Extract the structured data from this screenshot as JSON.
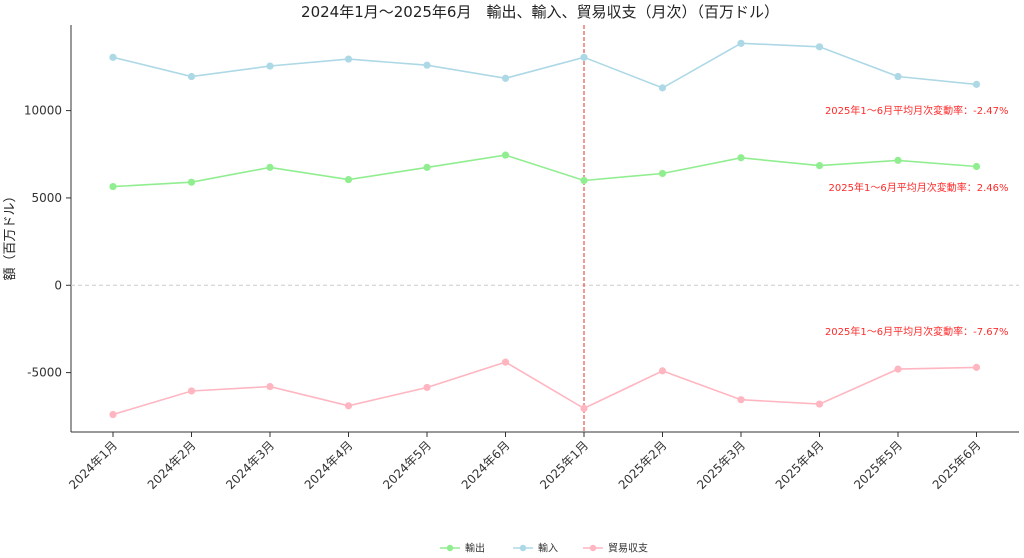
{
  "chart_data": {
    "type": "line",
    "title": "2024年1月～2025年6月　輸出、輸入、貿易収支（月次）（百万ドル）",
    "xlabel": "",
    "ylabel": "額（百万ドル）",
    "categories": [
      "2024年1月",
      "2024年2月",
      "2024年3月",
      "2024年4月",
      "2024年5月",
      "2024年6月",
      "2025年1月",
      "2025年2月",
      "2025年3月",
      "2025年4月",
      "2025年5月",
      "2025年6月"
    ],
    "series": [
      {
        "name": "輸出",
        "color": "#90ee90",
        "values": [
          5650,
          5900,
          6750,
          6050,
          6750,
          7450,
          6000,
          6400,
          7300,
          6850,
          7150,
          6800
        ]
      },
      {
        "name": "輸入",
        "color": "#add8e6",
        "values": [
          13050,
          11950,
          12550,
          12950,
          12600,
          11850,
          13050,
          11300,
          13850,
          13650,
          11950,
          11500
        ]
      },
      {
        "name": "貿易収支",
        "color": "#ffb6c1",
        "values": [
          -7400,
          -6050,
          -5800,
          -6900,
          -5850,
          -4400,
          -7050,
          -4900,
          -6550,
          -6800,
          -4800,
          -4700
        ]
      }
    ],
    "yticks": [
      -5000,
      0,
      5000,
      10000
    ],
    "ylim": [
      -8400,
      14900
    ],
    "divider_category": "2025年1月",
    "zero_line": true,
    "grid": false,
    "legend_position": "bottom-center",
    "annotations": [
      {
        "text": "2025年1～6月平均月次変動率：-2.47%",
        "x": "2025年6月",
        "y": 9800
      },
      {
        "text": "2025年1～6月平均月次変動率：2.46%",
        "x": "2025年6月",
        "y": 5400
      },
      {
        "text": "2025年1～6月平均月次変動率：-7.67%",
        "x": "2025年6月",
        "y": -2850
      }
    ],
    "annotation_color": "#ff2b2b"
  }
}
